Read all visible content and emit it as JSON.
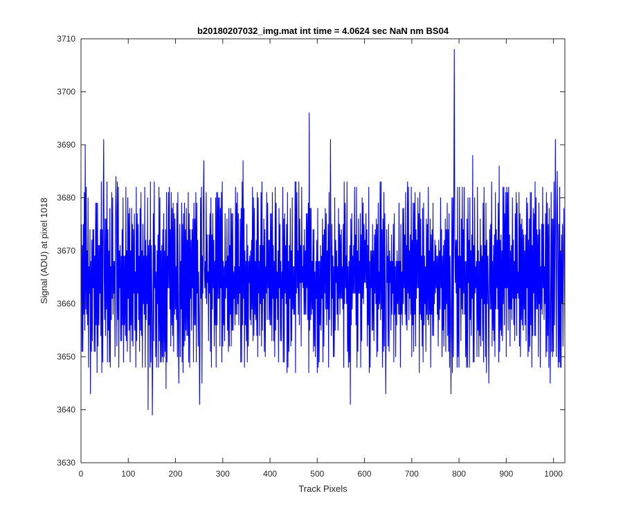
{
  "chart_data": {
    "type": "line",
    "title": "b20180207032_img.mat int time = 4.0624 sec  NaN nm BS04",
    "xlabel": "Track Pixels",
    "ylabel": "Signal (ADU) at pixel 1018",
    "xlim": [
      0,
      1024
    ],
    "ylim": [
      3630,
      3710
    ],
    "xticks": [
      0,
      100,
      200,
      300,
      400,
      500,
      600,
      700,
      800,
      900,
      1000
    ],
    "yticks": [
      3630,
      3640,
      3650,
      3660,
      3670,
      3680,
      3690,
      3700,
      3710
    ],
    "grid": false,
    "series_color": "#0000ff",
    "axis_color": "#262626",
    "n_points": 1024,
    "series": [
      {
        "x_start": 1,
        "x_step": 1,
        "noise_mean": 3665,
        "noise_range": [
          3647,
          3683
        ],
        "extremes": [
          {
            "x": 5,
            "y": 3675
          },
          {
            "x": 9,
            "y": 3690
          },
          {
            "x": 20,
            "y": 3643
          },
          {
            "x": 34,
            "y": 3647
          },
          {
            "x": 48,
            "y": 3691
          },
          {
            "x": 74,
            "y": 3684
          },
          {
            "x": 80,
            "y": 3648
          },
          {
            "x": 142,
            "y": 3640
          },
          {
            "x": 151,
            "y": 3639
          },
          {
            "x": 180,
            "y": 3644
          },
          {
            "x": 207,
            "y": 3645
          },
          {
            "x": 251,
            "y": 3641
          },
          {
            "x": 256,
            "y": 3645
          },
          {
            "x": 260,
            "y": 3687
          },
          {
            "x": 343,
            "y": 3687
          },
          {
            "x": 483,
            "y": 3696
          },
          {
            "x": 528,
            "y": 3691
          },
          {
            "x": 570,
            "y": 3641
          },
          {
            "x": 645,
            "y": 3643
          },
          {
            "x": 783,
            "y": 3643
          },
          {
            "x": 790,
            "y": 3708
          },
          {
            "x": 829,
            "y": 3688
          },
          {
            "x": 863,
            "y": 3645
          },
          {
            "x": 885,
            "y": 3686
          },
          {
            "x": 993,
            "y": 3645
          },
          {
            "x": 1004,
            "y": 3691
          },
          {
            "x": 1008,
            "y": 3685
          },
          {
            "x": 1018,
            "y": 3660
          },
          {
            "x": 1022,
            "y": 3678
          }
        ]
      }
    ]
  }
}
